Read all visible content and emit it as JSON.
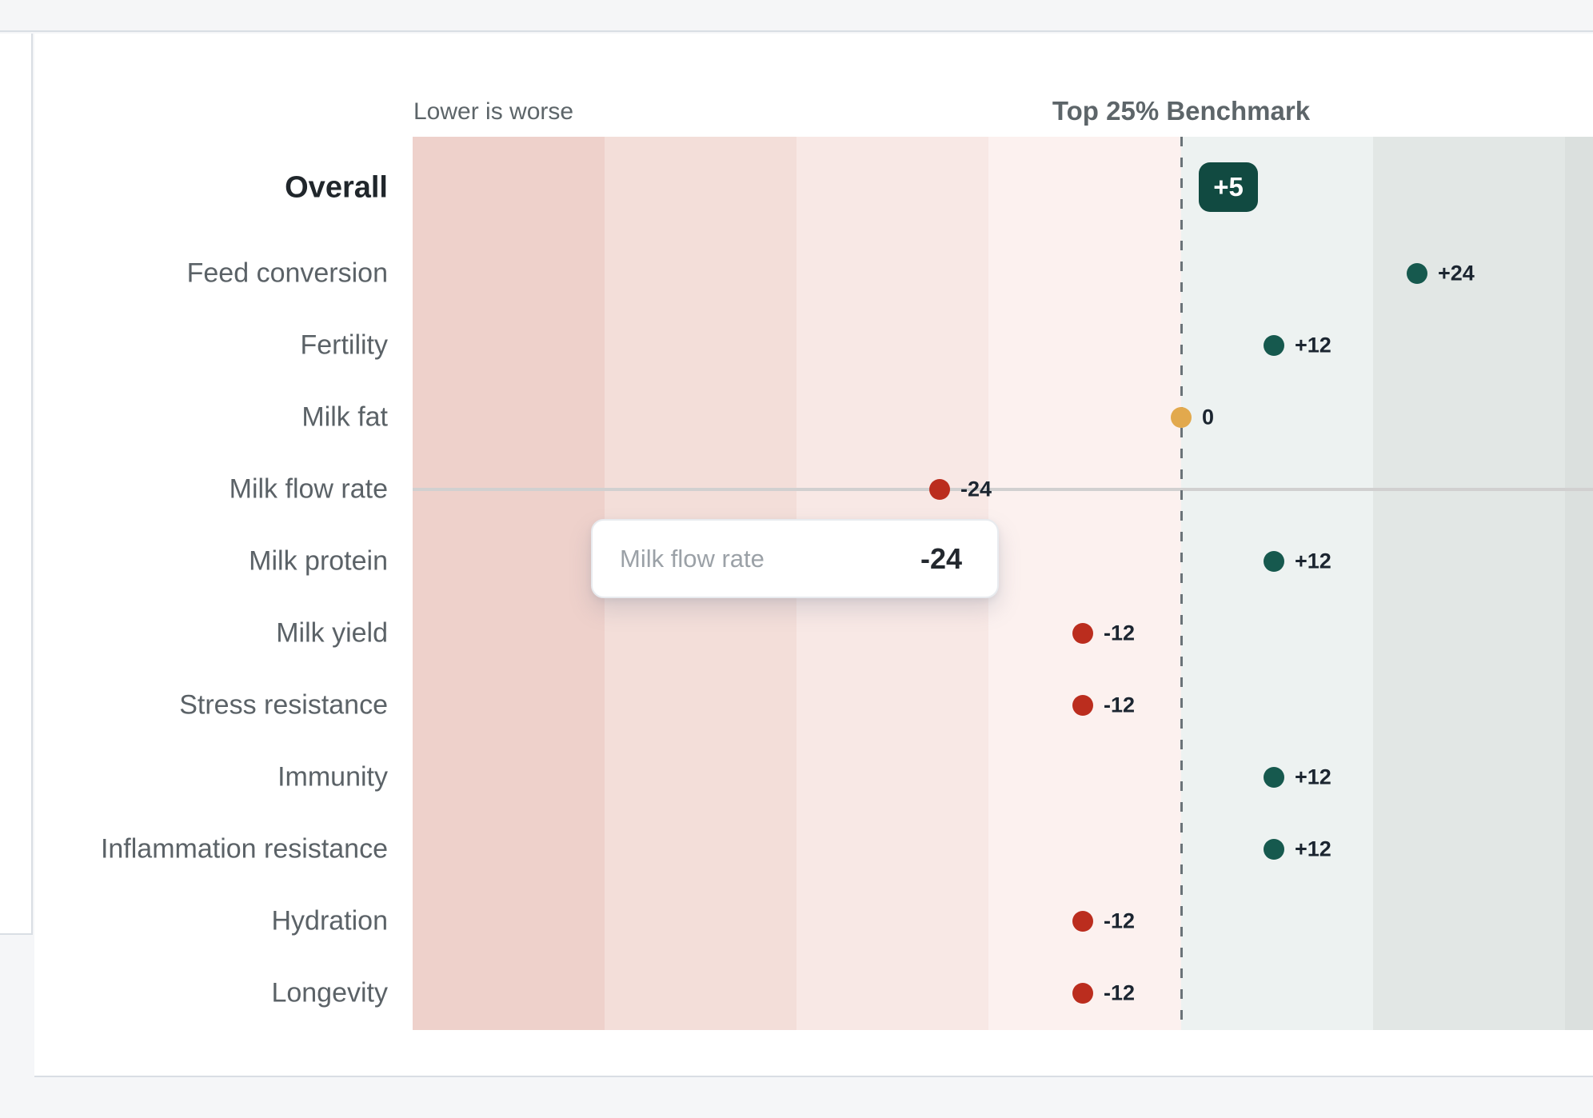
{
  "page": {
    "background": "#f5f6f8",
    "card_background": "#ffffff",
    "border_color": "#d9dee4"
  },
  "colors": {
    "positive_dot": "#16594e",
    "negative_dot": "#bb2d1e",
    "neutral_dot": "#e2a94d",
    "overall_badge_bg": "#114a41",
    "overall_badge_text": "#ffffff",
    "benchmark_line": "#6a7378",
    "highlight_line": "#d1d0d0",
    "bands_below_benchmark": [
      "#eed1cb",
      "#f3ded9",
      "#f8e8e5",
      "#fcf1ef"
    ],
    "bands_above_benchmark": [
      "#edf2f1",
      "#e2e7e5",
      "#dbe0de"
    ]
  },
  "chart_data": {
    "type": "scatter",
    "subtype": "categorical-dot-plot-vs-benchmark",
    "note": "Lower is worse",
    "benchmark_label": "Top 25% Benchmark",
    "benchmark_value": 0,
    "overall": {
      "label": "Overall",
      "value": 5,
      "display": "+5",
      "style": "badge"
    },
    "categories": [
      "Feed conversion",
      "Fertility",
      "Milk fat",
      "Milk flow rate",
      "Milk protein",
      "Milk yield",
      "Stress resistance",
      "Immunity",
      "Inflammation resistance",
      "Hydration",
      "Longevity"
    ],
    "values": [
      24,
      12,
      0,
      -24,
      12,
      -12,
      -12,
      12,
      12,
      -12,
      -12
    ],
    "value_labels": [
      "+24",
      "+12",
      "0",
      "-24",
      "+12",
      "-12",
      "-12",
      "+12",
      "+12",
      "-12",
      "-12"
    ],
    "band_width_units": 12,
    "bands_layout": "4 shaded bands below benchmark (darker = worse), dashed line at benchmark, 3 shaded bands above",
    "highlighted_category": "Milk flow rate",
    "tooltip": {
      "category": "Milk flow rate",
      "value_label": "-24"
    },
    "legend_position": "none",
    "grid": "off"
  }
}
